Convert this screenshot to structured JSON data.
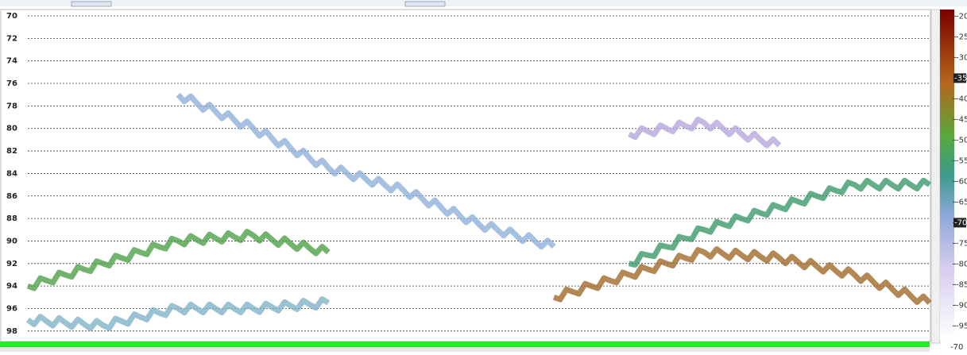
{
  "chart_data": {
    "type": "line",
    "categories": [
      null,
      null,
      null,
      null,
      null,
      null,
      null,
      null,
      null,
      null,
      null,
      null,
      null
    ],
    "series": [
      {
        "color": "#8fb0d8",
        "values": [
          null,
          null,
          77,
          80,
          83.5,
          85.5,
          88.5,
          90.5,
          null,
          null,
          null,
          null,
          null
        ]
      },
      {
        "color": "#4fa04a",
        "values": [
          94,
          92,
          90,
          89.5,
          91,
          null,
          null,
          null,
          null,
          null,
          null,
          null,
          null
        ]
      },
      {
        "color": "#3c9a6a",
        "values": [
          null,
          null,
          null,
          null,
          null,
          null,
          null,
          null,
          92,
          89,
          87,
          85,
          85
        ]
      },
      {
        "color": "#a06a2a",
        "values": [
          null,
          null,
          null,
          null,
          null,
          null,
          null,
          95,
          93,
          91,
          91.5,
          93,
          95.5
        ]
      },
      {
        "color": "#7fb3c8",
        "values": [
          97,
          97.5,
          96,
          96,
          95.5,
          null,
          null,
          null,
          null,
          null,
          null,
          null,
          null
        ]
      },
      {
        "color": "#b7a8dc",
        "values": [
          null,
          null,
          null,
          null,
          null,
          null,
          null,
          null,
          80.5,
          79.5,
          81.5,
          null,
          null
        ]
      }
    ],
    "ylim": [
      70,
      99
    ],
    "yticks": [
      70,
      72,
      74,
      76,
      78,
      80,
      82,
      84,
      86,
      88,
      90,
      92,
      94,
      96,
      98
    ],
    "grid": true,
    "clim": [
      -18,
      -98
    ],
    "cticks": [
      -20,
      -25,
      -30,
      -35,
      -40,
      -45,
      -50,
      -55,
      -60,
      -65,
      -70,
      -75,
      -80,
      -85,
      -90,
      -95
    ],
    "cmarkers": [
      -35,
      -70
    ],
    "cfloor": -70
  }
}
